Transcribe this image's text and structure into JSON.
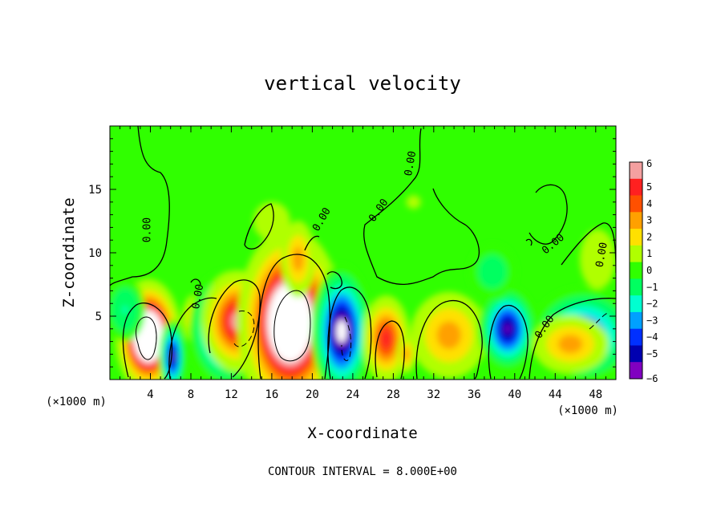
{
  "chart_data": {
    "type": "heatmap",
    "title": "vertical velocity",
    "xlabel": "X-coordinate",
    "ylabel": "Z-coordinate",
    "x_units": "(×1000 m)",
    "x_units_left": "(×1000 m)",
    "xlim": [
      0,
      50
    ],
    "ylim": [
      0,
      20
    ],
    "x_ticks": [
      4,
      8,
      12,
      16,
      20,
      24,
      28,
      32,
      36,
      40,
      44,
      48
    ],
    "y_ticks": [
      5,
      10,
      15
    ],
    "footer": "CONTOUR INTERVAL = 8.000E+00",
    "contour_label": "0.00",
    "colorbar": {
      "levels": [
        6,
        5,
        4,
        3,
        2,
        1,
        0,
        -1,
        -2,
        -3,
        -4,
        -5,
        -6
      ],
      "level_labels": [
        "6",
        "5",
        "4",
        "3",
        "2",
        "1",
        "0",
        "−1",
        "−2",
        "−3",
        "−4",
        "−5",
        "−6"
      ],
      "colors": [
        "#f4a0a0",
        "#ff2020",
        "#ff5000",
        "#ffa000",
        "#ffe000",
        "#b0ff00",
        "#30ff00",
        "#00ff60",
        "#00ffd0",
        "#00a0ff",
        "#0030ff",
        "#0000b0",
        "#8000c0"
      ]
    },
    "features": [
      {
        "x": 3.8,
        "z": 3.4,
        "amp": 12,
        "sx": 1.3,
        "sz": 1.8
      },
      {
        "x": 6.2,
        "z": 1.8,
        "amp": -6,
        "sx": 0.6,
        "sz": 1.3
      },
      {
        "x": 8.3,
        "z": 4.8,
        "amp": 3,
        "sx": 0.6,
        "sz": 1.0
      },
      {
        "x": 11.5,
        "z": 4.0,
        "amp": -7,
        "sx": 1.6,
        "sz": 2.0
      },
      {
        "x": 12.6,
        "z": 4.6,
        "amp": 6,
        "sx": 1.6,
        "sz": 1.8
      },
      {
        "x": 17.8,
        "z": 4.5,
        "amp": 11,
        "sx": 2.1,
        "sz": 3.0
      },
      {
        "x": 18.6,
        "z": 9.5,
        "amp": 3,
        "sx": 0.9,
        "sz": 1.6
      },
      {
        "x": 22.9,
        "z": 3.8,
        "amp": -7,
        "sx": 1.3,
        "sz": 2.3
      },
      {
        "x": 27.3,
        "z": 3.2,
        "amp": 5,
        "sx": 1.1,
        "sz": 1.6
      },
      {
        "x": 29.3,
        "z": 2.0,
        "amp": 3,
        "sx": 0.5,
        "sz": 0.8
      },
      {
        "x": 33.5,
        "z": 3.5,
        "amp": 3,
        "sx": 2.0,
        "sz": 1.8
      },
      {
        "x": 39.3,
        "z": 4.0,
        "amp": -6,
        "sx": 1.3,
        "sz": 1.5
      },
      {
        "x": 37.8,
        "z": 8.5,
        "amp": -1.5,
        "sx": 1.6,
        "sz": 1.5
      },
      {
        "x": 46.8,
        "z": 3.5,
        "amp": -4.5,
        "sx": 2.5,
        "sz": 1.8
      },
      {
        "x": 45.5,
        "z": 2.8,
        "amp": 3,
        "sx": 2.0,
        "sz": 1.2
      },
      {
        "x": 48.2,
        "z": 9.5,
        "amp": 1,
        "sx": 1.5,
        "sz": 2.0
      },
      {
        "x": 1.5,
        "z": 5.5,
        "amp": -2,
        "sx": 1.2,
        "sz": 1.5
      },
      {
        "x": 16.0,
        "z": 12.5,
        "amp": 0.6,
        "sx": 3.0,
        "sz": 2.5
      },
      {
        "x": 30.0,
        "z": 14.0,
        "amp": 0.5,
        "sx": 4.0,
        "sz": 3.0
      }
    ]
  }
}
